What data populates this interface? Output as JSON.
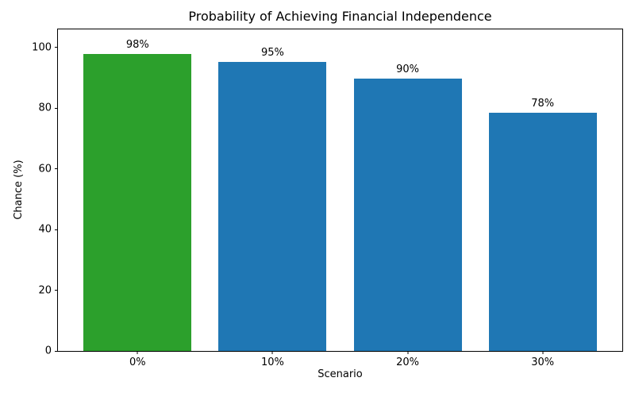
{
  "chart_data": {
    "type": "bar",
    "title": "Probability of Achieving Financial Independence",
    "xlabel": "Scenario",
    "ylabel": "Chance (%)",
    "categories": [
      "0%",
      "10%",
      "20%",
      "30%"
    ],
    "values": [
      98,
      95.3,
      89.7,
      78.5
    ],
    "bar_labels": [
      "98%",
      "95%",
      "90%",
      "78%"
    ],
    "bar_colors": [
      "#2ca02c",
      "#1f77b4",
      "#1f77b4",
      "#1f77b4"
    ],
    "ylim": [
      0,
      106
    ],
    "yticks": [
      0,
      20,
      40,
      60,
      80,
      100
    ],
    "bar_width_fraction": 0.8,
    "x_edge_margin": 0.09,
    "grid": false,
    "legend_position": "none",
    "text_color": "#000000",
    "axis_color": "#000000",
    "background_color": "#ffffff"
  }
}
